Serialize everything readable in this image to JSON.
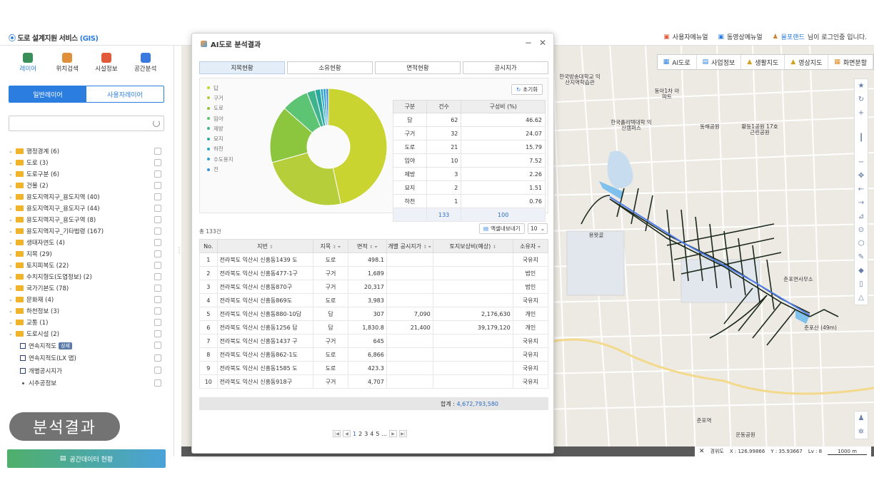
{
  "app": {
    "title": "도로 설계지원 서비스",
    "title_gis": "(GIS)",
    "top_links": [
      "사용자메뉴얼",
      "동영상메뉴얼"
    ],
    "user_name": "율포랜드",
    "user_suffix": "님이 로그인중 입니다."
  },
  "sidebar": {
    "nav": [
      {
        "label": "레이어",
        "icon": "layers-icon",
        "color": "#3a8e5a"
      },
      {
        "label": "위치검색",
        "icon": "location-search-icon",
        "color": "#e0903a"
      },
      {
        "label": "시설정보",
        "icon": "facility-icon",
        "color": "#e05a3a"
      },
      {
        "label": "공간분석",
        "icon": "spatial-analysis-icon",
        "color": "#3a7ae0"
      }
    ],
    "tab_general": "일반레이어",
    "tab_user": "사용자레이어",
    "layers": [
      "행정경계 (6)",
      "도로 (3)",
      "도로구분 (6)",
      "건물 (2)",
      "용도지역지구_용도지역 (40)",
      "용도지역지구_용도지구 (44)",
      "용도지역지구_용도구역 (8)",
      "용도지역지구_기타법령 (167)",
      "생태자연도 (4)",
      "지목 (29)",
      "토지피복도 (22)",
      "수치지형도(도엽정보) (2)",
      "국가기본도 (78)",
      "문화재 (4)",
      "하천정보 (3)",
      "교통 (1)",
      "도로시설 (2)"
    ],
    "sublayers": [
      "연속지적도",
      "연속지적도(LX 맵)",
      "개별공시지가"
    ],
    "sublayer_tag": "상세",
    "leaf": "시추공정보",
    "overlay_label": "분석결과",
    "bottom_button": "공간데이터 현황"
  },
  "map": {
    "tools": [
      "AI도로",
      "사업정보",
      "생활지도",
      "영상지도",
      "화면분할"
    ],
    "labels": [
      "한국방송대학교 익산지역학습관",
      "동아1차 아파트",
      "한국폴리텍대학 익산캠퍼스",
      "동해공원",
      "황등1공원 17호 근린공원",
      "용왓골",
      "춘포면사무소",
      "춘포산 (49m)",
      "춘포역",
      "운동공원"
    ],
    "status": {
      "view": "경위도",
      "x": "X : 126.99866",
      "y": "Y : 35.93667",
      "level": "Lv : 8",
      "scale": "1000 m"
    }
  },
  "panel": {
    "title": "AI도로 분석결과",
    "tabs": [
      "지목현황",
      "소유현황",
      "면적현황",
      "공시지가"
    ],
    "reset": "초기화",
    "legend": [
      {
        "name": "답",
        "color": "#c9d431"
      },
      {
        "name": "구거",
        "color": "#b5ce3a"
      },
      {
        "name": "도로",
        "color": "#8cc63e"
      },
      {
        "name": "임야",
        "color": "#5cc472"
      },
      {
        "name": "제방",
        "color": "#3fb38c"
      },
      {
        "name": "묘지",
        "color": "#2aa8a0"
      },
      {
        "name": "하천",
        "color": "#27a9c4"
      },
      {
        "name": "수도용지",
        "color": "#2f9ed8"
      },
      {
        "name": "전",
        "color": "#3b8fe0"
      }
    ],
    "stats_headers": [
      "구분",
      "건수",
      "구성비 (%)"
    ],
    "stats_rows": [
      [
        "답",
        "62",
        "46.62"
      ],
      [
        "구거",
        "32",
        "24.07"
      ],
      [
        "도로",
        "21",
        "15.79"
      ],
      [
        "임야",
        "10",
        "7.52"
      ],
      [
        "제방",
        "3",
        "2.26"
      ],
      [
        "묘지",
        "2",
        "1.51"
      ],
      [
        "하천",
        "1",
        "0.76"
      ]
    ],
    "stats_total": [
      "133",
      "100"
    ],
    "total_label": "총 133건",
    "excel": "엑셀내보내기",
    "page_size": "10",
    "table_headers": [
      "No.",
      "지번",
      "지목",
      "면적",
      "개별 공시지가",
      "토지보상비(예상)",
      "소유자"
    ],
    "rows": [
      [
        "1",
        "전라북도 익산시 신흥동1439 도",
        "도로",
        "498.1",
        "",
        "",
        "국유지"
      ],
      [
        "2",
        "전라북도 익산시 신흥동477-1구",
        "구거",
        "1,689",
        "",
        "",
        "법인"
      ],
      [
        "3",
        "전라북도 익산시 신흥동870구",
        "구거",
        "20,317",
        "",
        "",
        "법인"
      ],
      [
        "4",
        "전라북도 익산시 신흥동869도",
        "도로",
        "3,983",
        "",
        "",
        "국유지"
      ],
      [
        "5",
        "전라북도 익산시 신흥동880-10답",
        "답",
        "307",
        "7,090",
        "2,176,630",
        "개인"
      ],
      [
        "6",
        "전라북도 익산시 신흥동1256 답",
        "답",
        "1,830.8",
        "21,400",
        "39,179,120",
        "개인"
      ],
      [
        "7",
        "전라북도 익산시 신흥동1437 구",
        "구거",
        "645",
        "",
        "",
        "국유지"
      ],
      [
        "8",
        "전라북도 익산시 신흥동862-1도",
        "도로",
        "6,866",
        "",
        "",
        "국유지"
      ],
      [
        "9",
        "전라북도 익산시 신흥동1585 도",
        "도로",
        "423.3",
        "",
        "",
        "국유지"
      ],
      [
        "10",
        "전라북도 익산시 신흥동918구",
        "구거",
        "4,707",
        "",
        "",
        "국유지"
      ]
    ],
    "sum_label": "합계 :",
    "sum_value": "4,672,793,580",
    "pages": [
      "1",
      "2",
      "3",
      "4",
      "5",
      "..."
    ]
  },
  "chart_data": {
    "type": "pie",
    "categories": [
      "답",
      "구거",
      "도로",
      "임야",
      "제방",
      "묘지",
      "하천",
      "수도용지",
      "전"
    ],
    "values": [
      46.62,
      24.07,
      15.79,
      7.52,
      2.26,
      1.51,
      0.76,
      0.75,
      0.72
    ],
    "colors": [
      "#c9d431",
      "#b5ce3a",
      "#8cc63e",
      "#5cc472",
      "#3fb38c",
      "#2aa8a0",
      "#27a9c4",
      "#2f9ed8",
      "#3b8fe0"
    ],
    "legend": "left"
  }
}
